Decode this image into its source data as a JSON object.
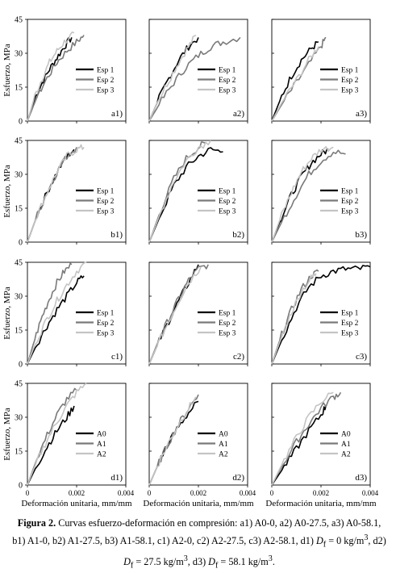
{
  "figure": {
    "y_axis_label": "Esfuerzo, MPa",
    "x_axis_label": "Deformación unitaria, mm/mm",
    "x_ticks": [
      "0",
      "0.002",
      "0.004"
    ],
    "y_ticks": [
      "0",
      "15",
      "30",
      "45"
    ],
    "series_colors": [
      "#000000",
      "#7a7a7a",
      "#c4c4c4"
    ]
  },
  "caption": {
    "prefix": "Figura 2.",
    "text_1": " Curvas esfuerzo-deformación en compresión: a1) A0-0, a2) A0-27.5, a3) A0-58.1, b1) A1-0, b2) A1-27.5, b3) A1-58.1, c1) A2-0, c2) A2-27.5, c3) A2-58.1, d1) ",
    "df_1": "D",
    "sub_1": "f",
    "text_2": " = 0 kg/m",
    "sup_1": "3",
    "text_3": ", d2) ",
    "df_2": "D",
    "sub_2": "f",
    "text_4": " = 27.5 kg/m",
    "sup_2": "3",
    "text_5": ", d3) ",
    "df_3": "D",
    "sub_3": "f",
    "text_6": " = 58.1 kg/m",
    "sup_3": "3",
    "text_7": "."
  },
  "chart_data": [
    {
      "type": "line",
      "panel_label": "a1)",
      "legend_placement": "center-right",
      "xlim": [
        0,
        0.004
      ],
      "ylim": [
        0,
        45
      ],
      "xlabel": "",
      "ylabel": "Esfuerzo, MPa",
      "series": [
        {
          "name": "Esp 1",
          "x": [
            0,
            0.0003,
            0.0006,
            0.0009,
            0.0012,
            0.0015,
            0.0018
          ],
          "y": [
            0,
            10,
            17,
            23,
            28,
            33,
            37
          ]
        },
        {
          "name": "Esp 2",
          "x": [
            0,
            0.0004,
            0.0008,
            0.0012,
            0.0016,
            0.002,
            0.0023
          ],
          "y": [
            0,
            11,
            19,
            26,
            31,
            35,
            38
          ]
        },
        {
          "name": "Esp 3",
          "x": [
            0,
            0.0003,
            0.0006,
            0.0009,
            0.0012,
            0.0015,
            0.0019
          ],
          "y": [
            0,
            11,
            19,
            26,
            31,
            35,
            39
          ]
        }
      ]
    },
    {
      "type": "line",
      "panel_label": "a2)",
      "legend_placement": "center-right",
      "xlim": [
        0,
        0.004
      ],
      "ylim": [
        0,
        45
      ],
      "xlabel": "",
      "ylabel": "",
      "series": [
        {
          "name": "Esp 1",
          "x": [
            0,
            0.0004,
            0.0008,
            0.0012,
            0.0016,
            0.002
          ],
          "y": [
            0,
            10,
            19,
            27,
            33,
            37
          ]
        },
        {
          "name": "Esp 2",
          "x": [
            0,
            0.0005,
            0.001,
            0.0015,
            0.002,
            0.0025,
            0.003,
            0.0037
          ],
          "y": [
            0,
            9,
            17,
            24,
            29,
            33,
            35,
            37
          ]
        },
        {
          "name": "Esp 3",
          "x": [
            0,
            0.0004,
            0.0008,
            0.0012,
            0.0016,
            0.0019
          ],
          "y": [
            0,
            10,
            18,
            26,
            33,
            38
          ]
        }
      ]
    },
    {
      "type": "line",
      "panel_label": "a3)",
      "legend_placement": "center-right",
      "xlim": [
        0,
        0.004
      ],
      "ylim": [
        0,
        45
      ],
      "xlabel": "",
      "ylabel": "",
      "series": [
        {
          "name": "Esp 1",
          "x": [
            0,
            0.0004,
            0.0008,
            0.0012,
            0.0016,
            0.0019
          ],
          "y": [
            0,
            11,
            20,
            27,
            32,
            35
          ]
        },
        {
          "name": "Esp 2",
          "x": [
            0,
            0.0005,
            0.001,
            0.0015,
            0.002,
            0.0022
          ],
          "y": [
            0,
            9,
            17,
            25,
            33,
            37
          ]
        },
        {
          "name": "Esp 3",
          "x": [
            0,
            0.0005,
            0.001,
            0.0015,
            0.0019
          ],
          "y": [
            0,
            10,
            18,
            27,
            33
          ]
        }
      ]
    },
    {
      "type": "line",
      "panel_label": "b1)",
      "legend_placement": "center-right",
      "xlim": [
        0,
        0.004
      ],
      "ylim": [
        0,
        45
      ],
      "xlabel": "",
      "ylabel": "Esfuerzo, MPa",
      "series": [
        {
          "name": "Esp 1",
          "x": [
            0,
            0.0004,
            0.0008,
            0.0012,
            0.0016,
            0.0019
          ],
          "y": [
            0,
            12,
            22,
            31,
            38,
            41
          ]
        },
        {
          "name": "Esp 2",
          "x": [
            0,
            0.0004,
            0.0008,
            0.0012,
            0.0016,
            0.002
          ],
          "y": [
            0,
            12,
            22,
            31,
            38,
            42
          ]
        },
        {
          "name": "Esp 3",
          "x": [
            0,
            0.0004,
            0.0008,
            0.0012,
            0.0016,
            0.002,
            0.0023
          ],
          "y": [
            0,
            12,
            22,
            31,
            38,
            41,
            42
          ]
        }
      ]
    },
    {
      "type": "line",
      "panel_label": "b2)",
      "legend_placement": "center-right",
      "xlim": [
        0,
        0.004
      ],
      "ylim": [
        0,
        45
      ],
      "xlabel": "",
      "ylabel": "",
      "series": [
        {
          "name": "Esp 1",
          "x": [
            0,
            0.0005,
            0.001,
            0.0015,
            0.002,
            0.0025,
            0.003
          ],
          "y": [
            0,
            13,
            25,
            33,
            38,
            41,
            40
          ]
        },
        {
          "name": "Esp 2",
          "x": [
            0,
            0.0005,
            0.001,
            0.0015,
            0.002,
            0.0023
          ],
          "y": [
            0,
            15,
            28,
            37,
            42,
            44
          ]
        },
        {
          "name": "Esp 3",
          "x": [
            0,
            0.0005,
            0.001,
            0.0015,
            0.002,
            0.0025
          ],
          "y": [
            0,
            14,
            27,
            36,
            42,
            45
          ]
        }
      ]
    },
    {
      "type": "line",
      "panel_label": "b3)",
      "legend_placement": "center-right",
      "xlim": [
        0,
        0.004
      ],
      "ylim": [
        0,
        45
      ],
      "xlabel": "",
      "ylabel": "",
      "series": [
        {
          "name": "Esp 1",
          "x": [
            0,
            0.0004,
            0.0008,
            0.0012,
            0.0016,
            0.002,
            0.0023
          ],
          "y": [
            0,
            11,
            21,
            29,
            35,
            39,
            41
          ]
        },
        {
          "name": "Esp 2",
          "x": [
            0,
            0.0005,
            0.001,
            0.0015,
            0.002,
            0.0025,
            0.003
          ],
          "y": [
            0,
            11,
            21,
            30,
            36,
            40,
            39
          ]
        },
        {
          "name": "Esp 3",
          "x": [
            0,
            0.0004,
            0.0008,
            0.0012,
            0.0016,
            0.002,
            0.0025
          ],
          "y": [
            0,
            12,
            22,
            31,
            37,
            41,
            42
          ]
        }
      ]
    },
    {
      "type": "line",
      "panel_label": "c1)",
      "legend_placement": "center-right",
      "xlim": [
        0,
        0.004
      ],
      "ylim": [
        0,
        45
      ],
      "xlabel": "",
      "ylabel": "Esfuerzo, MPa",
      "series": [
        {
          "name": "Esp 1",
          "x": [
            0,
            0.0004,
            0.0008,
            0.0012,
            0.0016,
            0.002,
            0.0023
          ],
          "y": [
            0,
            9,
            17,
            24,
            30,
            36,
            39
          ]
        },
        {
          "name": "Esp 2",
          "x": [
            0,
            0.0003,
            0.0006,
            0.0009,
            0.0012,
            0.0015,
            0.0018
          ],
          "y": [
            0,
            11,
            21,
            29,
            36,
            41,
            44
          ]
        },
        {
          "name": "Esp 3",
          "x": [
            0,
            0.0004,
            0.0008,
            0.0012,
            0.0016,
            0.002,
            0.0024
          ],
          "y": [
            0,
            11,
            20,
            28,
            35,
            41,
            45
          ]
        }
      ]
    },
    {
      "type": "line",
      "panel_label": "c2)",
      "legend_placement": "center-right",
      "xlim": [
        0,
        0.004
      ],
      "ylim": [
        0,
        45
      ],
      "xlabel": "",
      "ylabel": "",
      "series": [
        {
          "name": "Esp 1",
          "x": [
            0,
            0.0004,
            0.0008,
            0.0012,
            0.0016,
            0.002
          ],
          "y": [
            0,
            10,
            19,
            28,
            36,
            44
          ]
        },
        {
          "name": "Esp 2",
          "x": [
            0,
            0.0004,
            0.0008,
            0.0012,
            0.0016,
            0.002,
            0.0024
          ],
          "y": [
            0,
            11,
            20,
            29,
            37,
            42,
            44
          ]
        },
        {
          "name": "Esp 3",
          "x": [
            0,
            0.0004,
            0.0008,
            0.0012,
            0.0016,
            0.0021
          ],
          "y": [
            0,
            10,
            19,
            28,
            36,
            43
          ]
        }
      ]
    },
    {
      "type": "line",
      "panel_label": "c3)",
      "legend_placement": "center-right",
      "xlim": [
        0,
        0.004
      ],
      "ylim": [
        0,
        45
      ],
      "xlabel": "",
      "ylabel": "",
      "series": [
        {
          "name": "Esp 1",
          "x": [
            0,
            0.0005,
            0.001,
            0.0015,
            0.002,
            0.0025,
            0.003,
            0.0035,
            0.004
          ],
          "y": [
            0,
            13,
            25,
            34,
            39,
            41,
            42,
            42,
            43
          ]
        },
        {
          "name": "Esp 2",
          "x": [
            0,
            0.0004,
            0.0008,
            0.0012,
            0.0016,
            0.0019
          ],
          "y": [
            0,
            13,
            24,
            33,
            39,
            41
          ]
        },
        {
          "name": "Esp 3",
          "x": [
            0,
            0.0004,
            0.0008,
            0.0012,
            0.0016,
            0.0018
          ],
          "y": [
            0,
            12,
            23,
            32,
            38,
            40
          ]
        }
      ]
    },
    {
      "type": "line",
      "panel_label": "d1)",
      "legend_placement": "center-right",
      "xlim": [
        0,
        0.004
      ],
      "ylim": [
        0,
        45
      ],
      "xlabel": "Deformación unitaria, mm/mm",
      "ylabel": "Esfuerzo, MPa",
      "series": [
        {
          "name": "A0",
          "x": [
            0,
            0.0004,
            0.0008,
            0.0012,
            0.0016,
            0.0019
          ],
          "y": [
            0,
            9,
            17,
            24,
            30,
            35
          ]
        },
        {
          "name": "A1",
          "x": [
            0,
            0.0004,
            0.0008,
            0.0012,
            0.0016,
            0.002
          ],
          "y": [
            0,
            12,
            22,
            31,
            38,
            42
          ]
        },
        {
          "name": "A2",
          "x": [
            0,
            0.0004,
            0.0008,
            0.0012,
            0.0016,
            0.002,
            0.0024
          ],
          "y": [
            0,
            11,
            20,
            28,
            35,
            41,
            45
          ]
        }
      ]
    },
    {
      "type": "line",
      "panel_label": "d2)",
      "legend_placement": "center-right",
      "xlim": [
        0,
        0.004
      ],
      "ylim": [
        0,
        45
      ],
      "xlabel": "Deformación unitaria, mm/mm",
      "ylabel": "",
      "series": [
        {
          "name": "A0",
          "x": [
            0,
            0.0004,
            0.0008,
            0.0012,
            0.0016,
            0.002
          ],
          "y": [
            0,
            10,
            19,
            26,
            32,
            37
          ]
        },
        {
          "name": "A1",
          "x": [
            0,
            0.0004,
            0.0008,
            0.0012,
            0.0016,
            0.002
          ],
          "y": [
            0,
            10,
            19,
            27,
            34,
            40
          ]
        },
        {
          "name": "A2",
          "x": [
            0,
            0.0004,
            0.0008,
            0.0012,
            0.0016,
            0.0019
          ],
          "y": [
            0,
            10,
            19,
            27,
            34,
            39
          ]
        }
      ]
    },
    {
      "type": "line",
      "panel_label": "d3)",
      "legend_placement": "center-right",
      "xlim": [
        0,
        0.004
      ],
      "ylim": [
        0,
        45
      ],
      "xlabel": "Deformación unitaria, mm/mm",
      "ylabel": "",
      "series": [
        {
          "name": "A0",
          "x": [
            0,
            0.0005,
            0.001,
            0.0015,
            0.002,
            0.0022
          ],
          "y": [
            0,
            8,
            16,
            24,
            31,
            35
          ]
        },
        {
          "name": "A1",
          "x": [
            0,
            0.0005,
            0.001,
            0.0015,
            0.002,
            0.0025,
            0.0028
          ],
          "y": [
            0,
            10,
            19,
            27,
            34,
            39,
            41
          ]
        },
        {
          "name": "A2",
          "x": [
            0,
            0.0005,
            0.001,
            0.0015,
            0.002,
            0.0025
          ],
          "y": [
            0,
            11,
            21,
            30,
            37,
            41
          ]
        }
      ]
    }
  ]
}
